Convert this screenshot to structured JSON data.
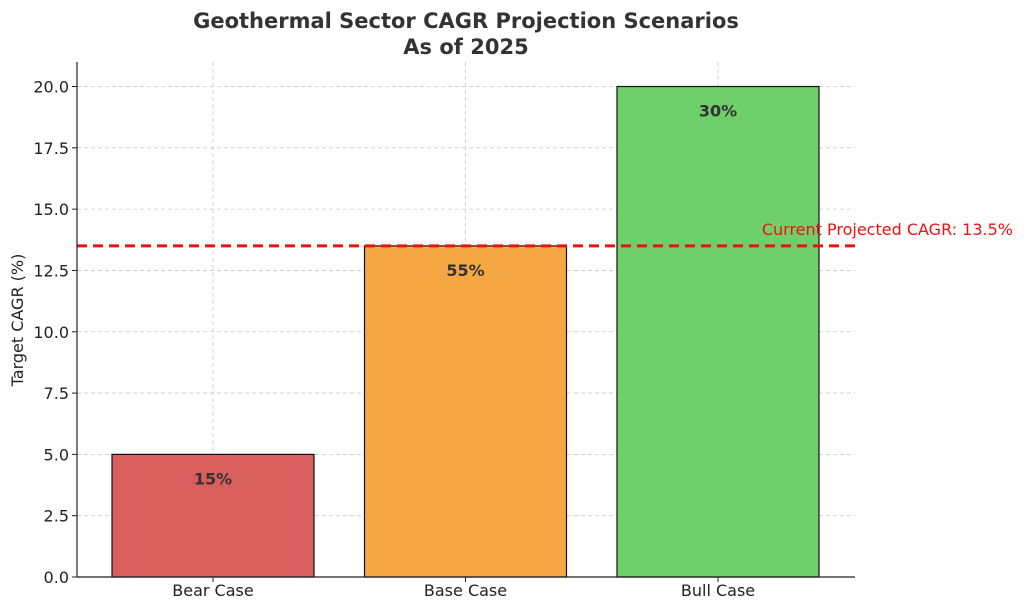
{
  "chart_data": {
    "type": "bar",
    "title_line1": "Geothermal Sector CAGR Projection Scenarios",
    "title_line2": "As of 2025",
    "xlabel": "",
    "ylabel": "Target CAGR (%)",
    "categories": [
      "Bear Case",
      "Base Case",
      "Bull Case"
    ],
    "values": [
      5.0,
      13.5,
      20.0
    ],
    "bar_labels": [
      "15%",
      "55%",
      "30%"
    ],
    "bar_colors": [
      "#d95f5f",
      "#f4a742",
      "#6fcf6a"
    ],
    "ylim": [
      0,
      21
    ],
    "yticks": [
      0.0,
      2.5,
      5.0,
      7.5,
      10.0,
      12.5,
      15.0,
      17.5,
      20.0
    ],
    "ytick_labels": [
      "0.0",
      "2.5",
      "5.0",
      "7.5",
      "10.0",
      "12.5",
      "15.0",
      "17.5",
      "20.0"
    ],
    "grid": true,
    "reference_line": {
      "value": 13.5,
      "label": "Current Projected CAGR: 13.5%",
      "color": "#ee1111",
      "style": "dashed"
    }
  }
}
